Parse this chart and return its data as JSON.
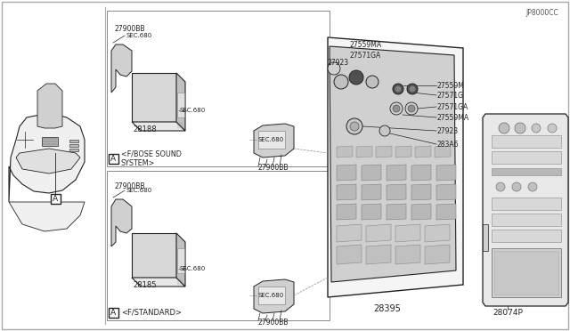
{
  "bg_color": "#ffffff",
  "line_color": "#222222",
  "text_color": "#222222",
  "light_gray": "#e0e0e0",
  "mid_gray": "#c0c0c0",
  "dark_gray": "#888888",
  "diagram_ref": "JP8000CC",
  "parts": {
    "main_unit": "28395",
    "bracket_top": "28185",
    "bracket_bottom": "28188",
    "conn_bb": "27900BB",
    "part_28074P": "28074P",
    "part_283A6": "283A6",
    "part_27923": "27923",
    "part_27559MA": "27559MA",
    "part_27571GA": "27571GA",
    "part_27571G": "27571G",
    "part_27559M": "27559M",
    "part_27571GA2": "27571GA",
    "part_27559MA2": "27559MA",
    "sec680": "SEC.680",
    "label_standard": "<F/STANDARD>",
    "label_bose": "<F/BOSE SOUND\nSYSTEM>",
    "label_A": "A"
  }
}
